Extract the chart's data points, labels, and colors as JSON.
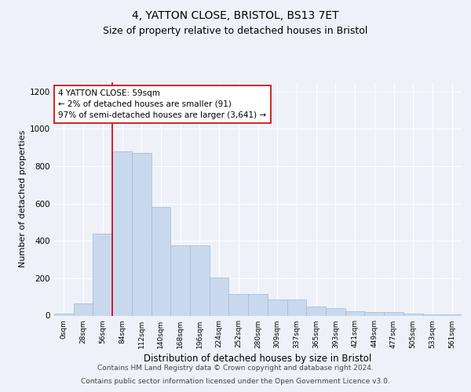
{
  "title1": "4, YATTON CLOSE, BRISTOL, BS13 7ET",
  "title2": "Size of property relative to detached houses in Bristol",
  "xlabel": "Distribution of detached houses by size in Bristol",
  "ylabel": "Number of detached properties",
  "bar_values": [
    12,
    65,
    440,
    880,
    870,
    580,
    375,
    375,
    205,
    115,
    115,
    85,
    85,
    50,
    42,
    22,
    18,
    18,
    12,
    8,
    8
  ],
  "bar_labels": [
    "0sqm",
    "28sqm",
    "56sqm",
    "84sqm",
    "112sqm",
    "140sqm",
    "168sqm",
    "196sqm",
    "224sqm",
    "252sqm",
    "280sqm",
    "309sqm",
    "337sqm",
    "365sqm",
    "393sqm",
    "421sqm",
    "449sqm",
    "477sqm",
    "505sqm",
    "533sqm",
    "561sqm"
  ],
  "bar_color": "#c9d9ed",
  "bar_edgecolor": "#a0b8d8",
  "vline_x_idx": 2,
  "vline_color": "#cc0000",
  "annotation_text": "4 YATTON CLOSE: 59sqm\n← 2% of detached houses are smaller (91)\n97% of semi-detached houses are larger (3,641) →",
  "annotation_box_color": "white",
  "annotation_box_edgecolor": "#cc0000",
  "ylim": [
    0,
    1250
  ],
  "yticks": [
    0,
    200,
    400,
    600,
    800,
    1000,
    1200
  ],
  "footer_line1": "Contains HM Land Registry data © Crown copyright and database right 2024.",
  "footer_line2": "Contains public sector information licensed under the Open Government Licence v3.0.",
  "bg_color": "#eef2f8",
  "plot_bg_color": "#eef2f8",
  "grid_color": "#ffffff",
  "title1_fontsize": 10,
  "title2_fontsize": 9,
  "xlabel_fontsize": 8.5,
  "ylabel_fontsize": 8,
  "annotation_fontsize": 7.5,
  "footer_fontsize": 6.5
}
